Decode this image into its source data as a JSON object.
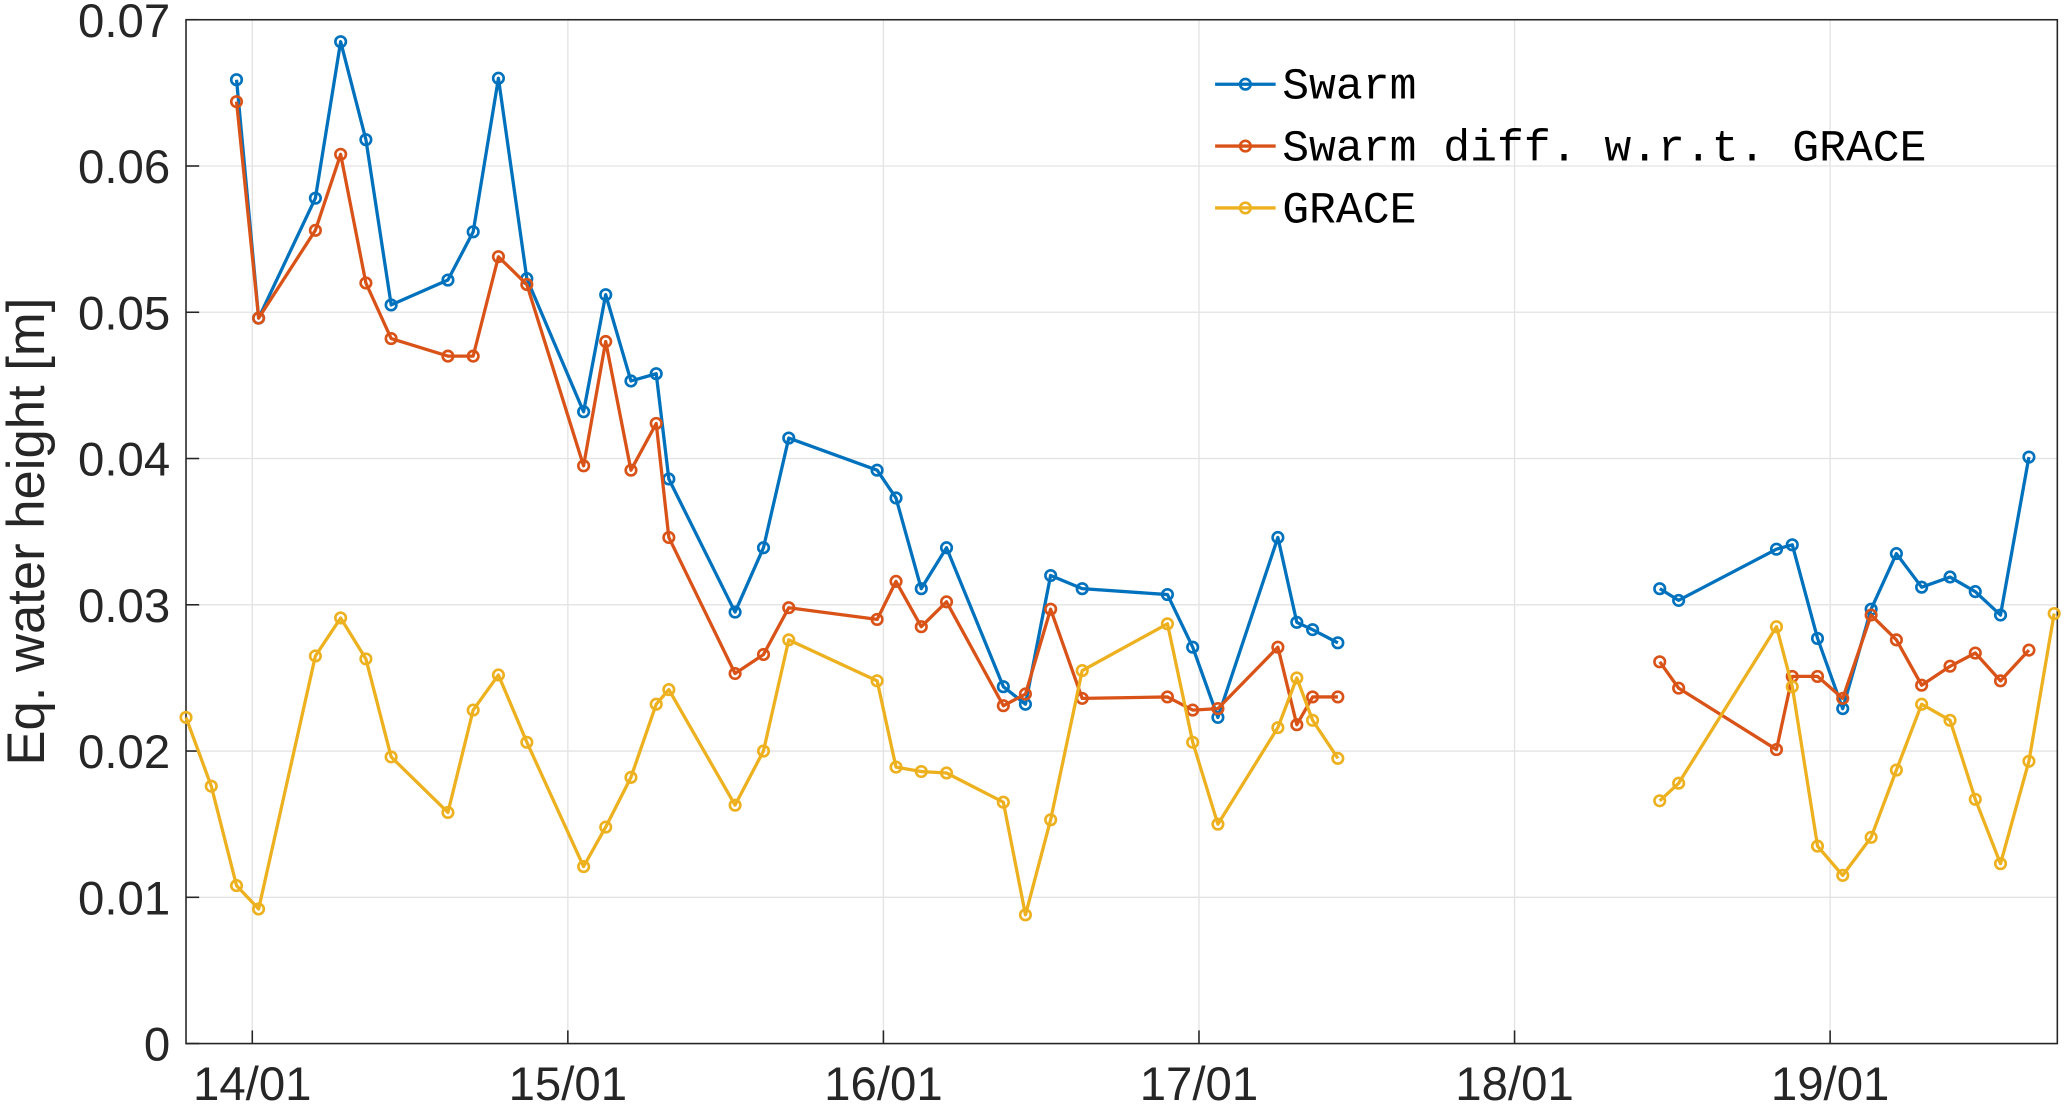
{
  "chart_data": {
    "type": "line",
    "title": "",
    "xlabel": "",
    "ylabel": "Eq. water height [m]",
    "xlim": [
      13.79,
      19.72
    ],
    "ylim": [
      0,
      0.07
    ],
    "grid": true,
    "legend_position": "top-center",
    "x_ticks": [
      14,
      15,
      16,
      17,
      18,
      19
    ],
    "x_tick_labels": [
      "14/01",
      "15/01",
      "16/01",
      "17/01",
      "18/01",
      "19/01"
    ],
    "y_ticks": [
      0,
      0.01,
      0.02,
      0.03,
      0.04,
      0.05,
      0.06,
      0.07
    ],
    "y_tick_labels": [
      "0",
      "0.01",
      "0.02",
      "0.03",
      "0.04",
      "0.05",
      "0.06",
      "0.07"
    ],
    "x": [
      13.79,
      13.87,
      13.95,
      14.02,
      14.2,
      14.28,
      14.36,
      14.44,
      14.62,
      14.7,
      14.78,
      14.87,
      15.05,
      15.12,
      15.2,
      15.28,
      15.32,
      15.53,
      15.62,
      15.7,
      15.98,
      16.04,
      16.12,
      16.2,
      16.38,
      16.45,
      16.53,
      16.63,
      16.9,
      16.98,
      17.06,
      17.25,
      17.31,
      17.36,
      17.44,
      18.0,
      18.46,
      18.52,
      18.83,
      18.88,
      18.96,
      19.04,
      19.13,
      19.21,
      19.29,
      19.38,
      19.46,
      19.54,
      19.63,
      19.71
    ],
    "series": [
      {
        "name": "Swarm",
        "color": "#0072BD",
        "values": [
          null,
          null,
          0.0659,
          0.0496,
          0.0578,
          0.0685,
          0.0618,
          0.0505,
          0.0522,
          0.0555,
          0.066,
          0.0523,
          0.0432,
          0.0512,
          0.0453,
          0.0458,
          0.0386,
          0.0295,
          0.0339,
          0.0414,
          0.0392,
          0.0373,
          0.0311,
          0.0339,
          0.0244,
          0.0232,
          0.032,
          0.0311,
          0.0307,
          0.0271,
          0.0223,
          0.0346,
          0.0288,
          0.0283,
          0.0274,
          null,
          0.0311,
          0.0303,
          0.0338,
          0.0341,
          0.0277,
          0.0229,
          0.0297,
          0.0335,
          0.0312,
          0.0319,
          0.0309,
          0.0293,
          0.0401,
          null
        ]
      },
      {
        "name": "Swarm diff. w.r.t. GRACE",
        "color": "#D95319",
        "values": [
          null,
          null,
          0.0644,
          0.0496,
          0.0556,
          0.0608,
          0.052,
          0.0482,
          0.047,
          0.047,
          0.0538,
          0.0519,
          0.0395,
          0.048,
          0.0392,
          0.0424,
          0.0346,
          0.0253,
          0.0266,
          0.0298,
          0.029,
          0.0316,
          0.0285,
          0.0302,
          0.0231,
          0.0239,
          0.0297,
          0.0236,
          0.0237,
          0.0228,
          0.0229,
          0.0271,
          0.0218,
          0.0237,
          0.0237,
          null,
          0.0261,
          0.0243,
          0.0201,
          0.0251,
          0.0251,
          0.0236,
          0.0293,
          0.0276,
          0.0245,
          0.0258,
          0.0267,
          0.0248,
          0.0269,
          null
        ]
      },
      {
        "name": "GRACE",
        "color": "#EDB120",
        "values": [
          0.0223,
          0.0176,
          0.0108,
          0.0092,
          0.0265,
          0.0291,
          0.0263,
          0.0196,
          0.0158,
          0.0228,
          0.0252,
          0.0206,
          0.0121,
          0.0148,
          0.0182,
          0.0232,
          0.0242,
          0.0163,
          0.02,
          0.0276,
          0.0248,
          0.0189,
          0.0186,
          0.0185,
          0.0165,
          0.0088,
          0.0153,
          0.0255,
          0.0287,
          0.0206,
          0.015,
          0.0216,
          0.025,
          0.0221,
          0.0195,
          null,
          0.0166,
          0.0178,
          0.0285,
          0.0244,
          0.0135,
          0.0115,
          0.0141,
          0.0187,
          0.0232,
          0.0221,
          0.0167,
          0.0123,
          0.0193,
          0.0294
        ]
      }
    ]
  }
}
